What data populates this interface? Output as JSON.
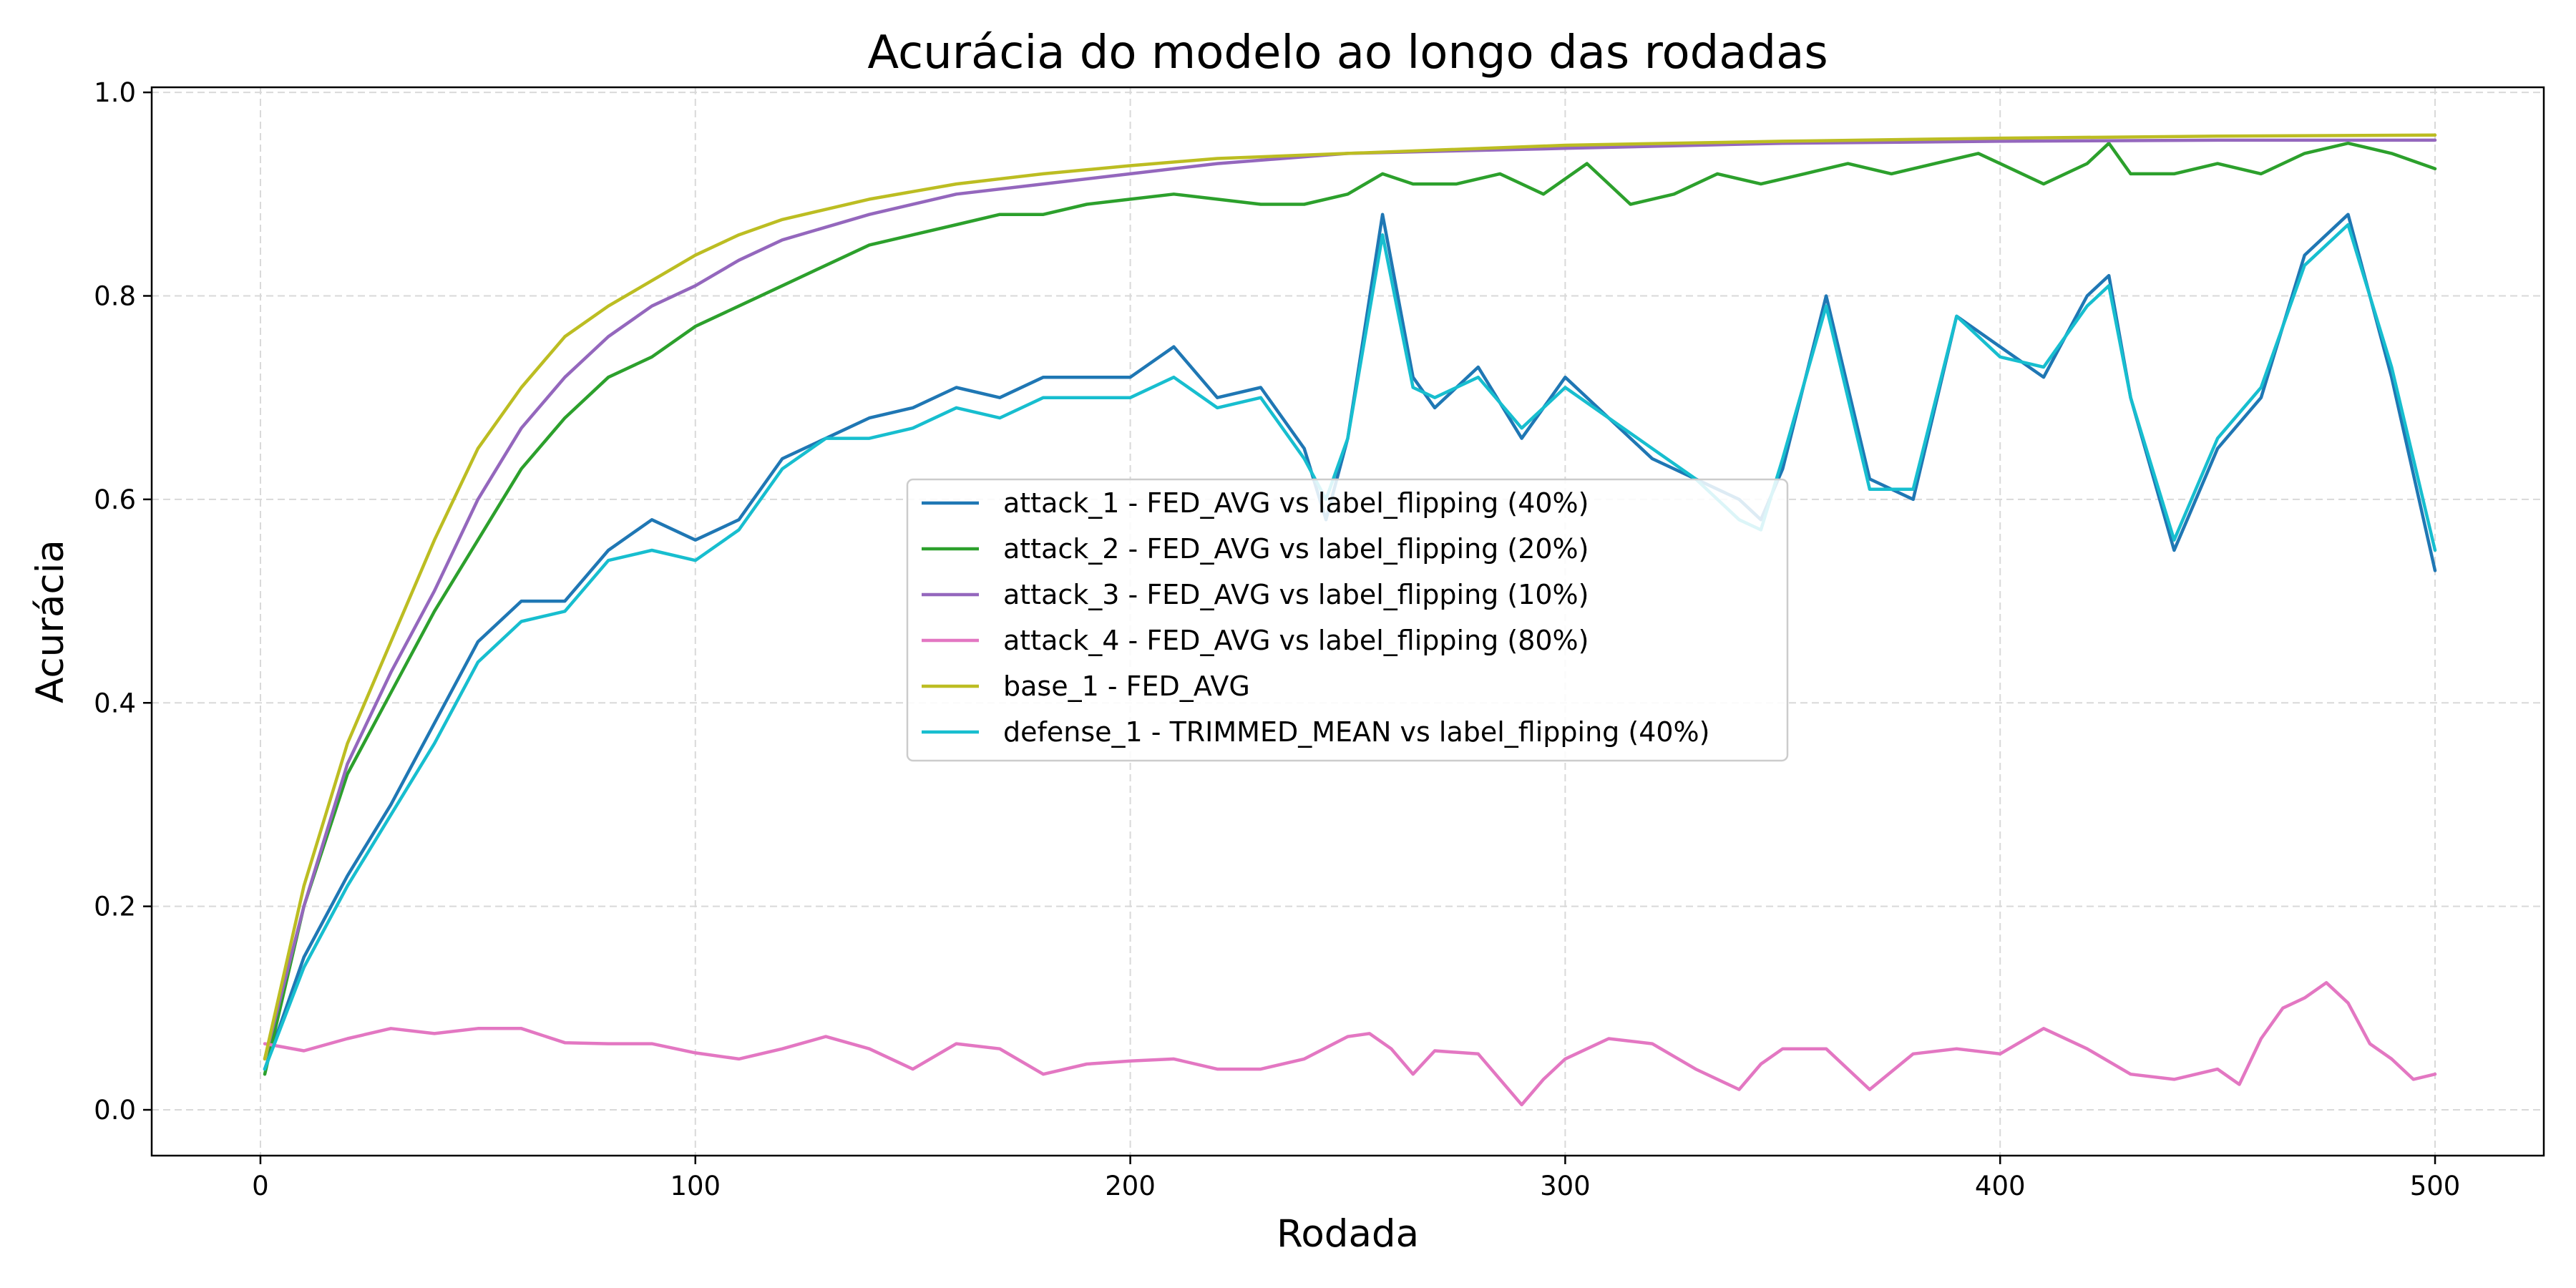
{
  "chart_data": {
    "type": "line",
    "title": "Acurácia do modelo ao longo das rodadas",
    "xlabel": "Rodada",
    "ylabel": "Acurácia",
    "xlim": [
      -25,
      525
    ],
    "ylim": [
      -0.045,
      1.005
    ],
    "xticks": [
      0,
      100,
      200,
      300,
      400,
      500
    ],
    "xtick_labels": [
      "0",
      "100",
      "200",
      "300",
      "400",
      "500"
    ],
    "yticks": [
      0.0,
      0.2,
      0.4,
      0.6,
      0.8,
      1.0
    ],
    "ytick_labels": [
      "0.0",
      "0.2",
      "0.4",
      "0.6",
      "0.8",
      "1.0"
    ],
    "grid": true,
    "legend_position": "center",
    "series": [
      {
        "name": "attack_1 - FED_AVG vs label_flipping (40%)",
        "color": "#1f77b4",
        "x": [
          1,
          10,
          20,
          30,
          40,
          50,
          60,
          70,
          80,
          90,
          100,
          110,
          120,
          130,
          140,
          150,
          160,
          170,
          180,
          190,
          200,
          210,
          220,
          230,
          240,
          245,
          250,
          258,
          265,
          270,
          280,
          290,
          300,
          310,
          320,
          330,
          340,
          345,
          350,
          360,
          370,
          380,
          390,
          400,
          410,
          420,
          425,
          430,
          440,
          450,
          460,
          470,
          480,
          490,
          500
        ],
        "y": [
          0.04,
          0.15,
          0.23,
          0.3,
          0.38,
          0.46,
          0.5,
          0.5,
          0.55,
          0.58,
          0.56,
          0.58,
          0.64,
          0.66,
          0.68,
          0.69,
          0.71,
          0.7,
          0.72,
          0.72,
          0.72,
          0.75,
          0.7,
          0.71,
          0.65,
          0.58,
          0.66,
          0.88,
          0.72,
          0.69,
          0.73,
          0.66,
          0.72,
          0.68,
          0.64,
          0.62,
          0.6,
          0.58,
          0.63,
          0.8,
          0.62,
          0.6,
          0.78,
          0.75,
          0.72,
          0.8,
          0.82,
          0.7,
          0.55,
          0.65,
          0.7,
          0.84,
          0.88,
          0.72,
          0.53
        ]
      },
      {
        "name": "attack_2 - FED_AVG vs label_flipping (20%)",
        "color": "#2ca02c",
        "x": [
          1,
          10,
          20,
          30,
          40,
          50,
          60,
          70,
          80,
          90,
          100,
          110,
          120,
          130,
          140,
          150,
          160,
          170,
          180,
          190,
          200,
          210,
          220,
          230,
          240,
          250,
          258,
          265,
          275,
          285,
          295,
          305,
          315,
          325,
          335,
          345,
          355,
          365,
          375,
          385,
          395,
          400,
          410,
          420,
          425,
          430,
          440,
          450,
          460,
          470,
          480,
          490,
          500
        ],
        "y": [
          0.035,
          0.2,
          0.33,
          0.41,
          0.49,
          0.56,
          0.63,
          0.68,
          0.72,
          0.74,
          0.77,
          0.79,
          0.81,
          0.83,
          0.85,
          0.86,
          0.87,
          0.88,
          0.88,
          0.89,
          0.895,
          0.9,
          0.895,
          0.89,
          0.89,
          0.9,
          0.92,
          0.91,
          0.91,
          0.92,
          0.9,
          0.93,
          0.89,
          0.9,
          0.92,
          0.91,
          0.92,
          0.93,
          0.92,
          0.93,
          0.94,
          0.93,
          0.91,
          0.93,
          0.95,
          0.92,
          0.92,
          0.93,
          0.92,
          0.94,
          0.95,
          0.94,
          0.925
        ]
      },
      {
        "name": "attack_3 - FED_AVG vs label_flipping (10%)",
        "color": "#9467bd",
        "x": [
          1,
          10,
          20,
          30,
          40,
          50,
          60,
          70,
          80,
          90,
          100,
          110,
          120,
          140,
          160,
          180,
          200,
          220,
          250,
          300,
          350,
          400,
          450,
          500
        ],
        "y": [
          0.05,
          0.2,
          0.34,
          0.43,
          0.51,
          0.6,
          0.67,
          0.72,
          0.76,
          0.79,
          0.81,
          0.835,
          0.855,
          0.88,
          0.9,
          0.91,
          0.92,
          0.93,
          0.94,
          0.945,
          0.95,
          0.952,
          0.953,
          0.953
        ]
      },
      {
        "name": "attack_4 - FED_AVG vs label_flipping (80%)",
        "color": "#e377c2",
        "x": [
          1,
          10,
          20,
          30,
          40,
          50,
          60,
          70,
          80,
          90,
          100,
          110,
          120,
          130,
          140,
          150,
          160,
          170,
          180,
          190,
          200,
          210,
          220,
          230,
          240,
          250,
          255,
          260,
          265,
          270,
          280,
          290,
          295,
          300,
          310,
          320,
          330,
          340,
          345,
          350,
          360,
          370,
          380,
          390,
          400,
          410,
          420,
          430,
          440,
          450,
          455,
          460,
          465,
          470,
          475,
          480,
          485,
          490,
          495,
          500
        ],
        "y": [
          0.065,
          0.058,
          0.07,
          0.08,
          0.075,
          0.08,
          0.08,
          0.066,
          0.065,
          0.065,
          0.056,
          0.05,
          0.06,
          0.072,
          0.06,
          0.04,
          0.065,
          0.06,
          0.035,
          0.045,
          0.048,
          0.05,
          0.04,
          0.04,
          0.05,
          0.072,
          0.075,
          0.06,
          0.035,
          0.058,
          0.055,
          0.005,
          0.03,
          0.05,
          0.07,
          0.065,
          0.04,
          0.02,
          0.045,
          0.06,
          0.06,
          0.02,
          0.055,
          0.06,
          0.055,
          0.08,
          0.06,
          0.035,
          0.03,
          0.04,
          0.025,
          0.07,
          0.1,
          0.11,
          0.125,
          0.105,
          0.065,
          0.05,
          0.03,
          0.035
        ]
      },
      {
        "name": "base_1 - FED_AVG",
        "color": "#bcbd22",
        "x": [
          1,
          10,
          20,
          30,
          40,
          50,
          60,
          70,
          80,
          90,
          100,
          110,
          120,
          140,
          160,
          180,
          200,
          220,
          250,
          300,
          350,
          400,
          450,
          500
        ],
        "y": [
          0.05,
          0.22,
          0.36,
          0.46,
          0.56,
          0.65,
          0.71,
          0.76,
          0.79,
          0.815,
          0.84,
          0.86,
          0.875,
          0.895,
          0.91,
          0.92,
          0.928,
          0.935,
          0.94,
          0.948,
          0.952,
          0.955,
          0.957,
          0.958
        ]
      },
      {
        "name": "defense_1 - TRIMMED_MEAN vs label_flipping (40%)",
        "color": "#17becf",
        "x": [
          1,
          10,
          20,
          30,
          40,
          50,
          60,
          70,
          80,
          90,
          100,
          110,
          120,
          130,
          140,
          150,
          160,
          170,
          180,
          190,
          200,
          210,
          220,
          230,
          240,
          245,
          250,
          258,
          265,
          270,
          280,
          290,
          300,
          310,
          320,
          330,
          340,
          345,
          350,
          360,
          370,
          380,
          390,
          400,
          410,
          420,
          425,
          430,
          440,
          450,
          460,
          470,
          480,
          490,
          500
        ],
        "y": [
          0.04,
          0.14,
          0.22,
          0.29,
          0.36,
          0.44,
          0.48,
          0.49,
          0.54,
          0.55,
          0.54,
          0.57,
          0.63,
          0.66,
          0.66,
          0.67,
          0.69,
          0.68,
          0.7,
          0.7,
          0.7,
          0.72,
          0.69,
          0.7,
          0.64,
          0.6,
          0.66,
          0.86,
          0.71,
          0.7,
          0.72,
          0.67,
          0.71,
          0.68,
          0.65,
          0.62,
          0.58,
          0.57,
          0.64,
          0.79,
          0.61,
          0.61,
          0.78,
          0.74,
          0.73,
          0.79,
          0.81,
          0.7,
          0.56,
          0.66,
          0.71,
          0.83,
          0.87,
          0.73,
          0.55
        ]
      }
    ]
  }
}
